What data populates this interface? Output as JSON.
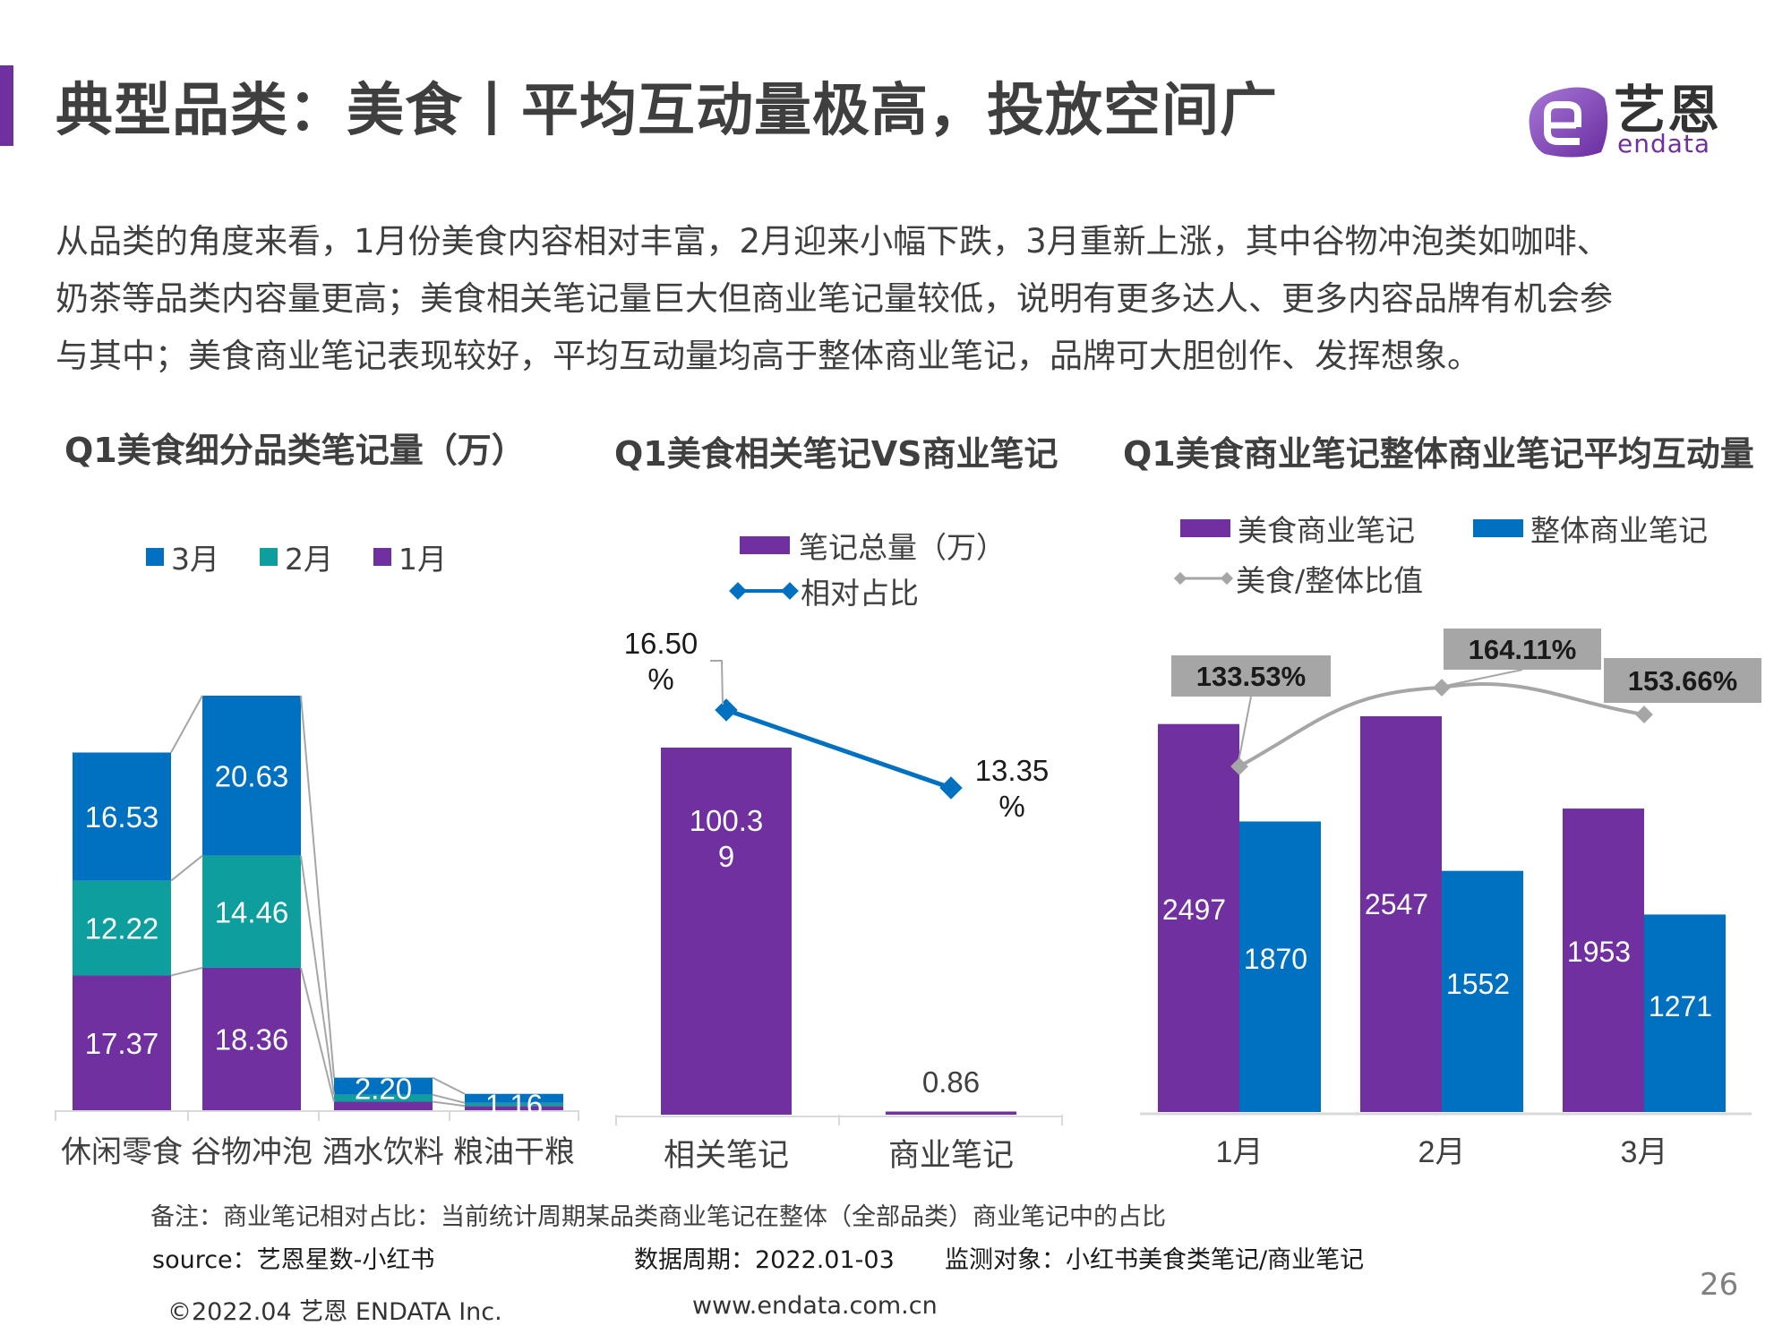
{
  "header": {
    "title": "典型品类：美食丨平均互动量极高，投放空间广",
    "logo_cn": "艺恩",
    "logo_en": "endata"
  },
  "summary_lines": [
    "从品类的角度来看，1月份美食内容相对丰富，2月迎来小幅下跌，3月重新上涨，其中谷物冲泡类如咖啡、",
    "奶茶等品类内容量更高；美食相关笔记量巨大但商业笔记量较低，说明有更多达人、更多内容品牌有机会参",
    "与其中；美食商业笔记表现较好，平均互动量均高于整体商业笔记，品牌可大胆创作、发挥想象。"
  ],
  "colors": {
    "purple": "#7030A0",
    "blue": "#0070C0",
    "teal": "#0E9E9E",
    "gray": "#A6A6A6"
  },
  "chart_data": [
    {
      "type": "bar",
      "stacked": true,
      "title": "Q1美食细分品类笔记量（万）",
      "categories": [
        "休闲零食",
        "谷物冲泡",
        "酒水饮料",
        "粮油干粮"
      ],
      "series": [
        {
          "name": "1月",
          "values": [
            17.37,
            18.36,
            1.1,
            0.55
          ],
          "labels": [
            "17.37",
            "18.36",
            "",
            ""
          ]
        },
        {
          "name": "2月",
          "values": [
            12.22,
            14.46,
            0.9,
            0.4
          ],
          "labels": [
            "12.22",
            "14.46",
            "",
            ""
          ]
        },
        {
          "name": "3月",
          "values": [
            16.53,
            20.63,
            2.2,
            1.16
          ],
          "labels": [
            "16.53",
            "20.63",
            "2.20",
            "1.16"
          ]
        }
      ],
      "legend": [
        "3月",
        "2月",
        "1月"
      ],
      "legend_position": "top",
      "series_lines": true,
      "xlabel": "",
      "ylabel": "",
      "ylim": [
        0,
        55
      ],
      "grid": false
    },
    {
      "type": "bar",
      "title": "Q1美食相关笔记VS商业笔记",
      "categories": [
        "相关笔记",
        "商业笔记"
      ],
      "series": [
        {
          "name": "笔记总量（万）",
          "type": "bar",
          "values": [
            100.39,
            0.86
          ],
          "labels": [
            "100.3\n9",
            "0.86"
          ]
        },
        {
          "name": "相对占比",
          "type": "line",
          "values": [
            16.5,
            13.35
          ],
          "labels": [
            "16.50\n%",
            "13.35\n%"
          ],
          "unit": "%"
        }
      ],
      "legend": [
        "笔记总量（万）",
        "相对占比"
      ],
      "legend_position": "top",
      "ylim": [
        0,
        110
      ],
      "y2lim": [
        0,
        20
      ],
      "grid": false
    },
    {
      "type": "bar",
      "title": "Q1美食商业笔记整体商业笔记平均互动量",
      "categories": [
        "1月",
        "2月",
        "3月"
      ],
      "series": [
        {
          "name": "美食商业笔记",
          "type": "bar",
          "values": [
            2497,
            2547,
            1953
          ]
        },
        {
          "name": "整体商业笔记",
          "type": "bar",
          "values": [
            1870,
            1552,
            1271
          ]
        },
        {
          "name": "美食/整体比值",
          "type": "line",
          "values": [
            133.53,
            164.11,
            153.66
          ],
          "labels": [
            "133.53%",
            "164.11%",
            "153.66%"
          ],
          "unit": "%"
        }
      ],
      "legend": [
        "美食商业笔记",
        "整体商业笔记",
        "美食/整体比值"
      ],
      "legend_position": "top",
      "ylim": [
        0,
        2800
      ],
      "grid": false
    }
  ],
  "footer": {
    "note": "备注：商业笔记相对占比：当前统计周期某品类商业笔记在整体（全部品类）商业笔记中的占比",
    "source": "source：艺恩星数-小红书",
    "period": "数据周期：2022.01-03",
    "target": "监测对象：小红书美食类笔记/商业笔记",
    "copyright": "©2022.04 艺恩 ENDATA Inc.",
    "website": "www.endata.com.cn",
    "page_number": "26"
  }
}
